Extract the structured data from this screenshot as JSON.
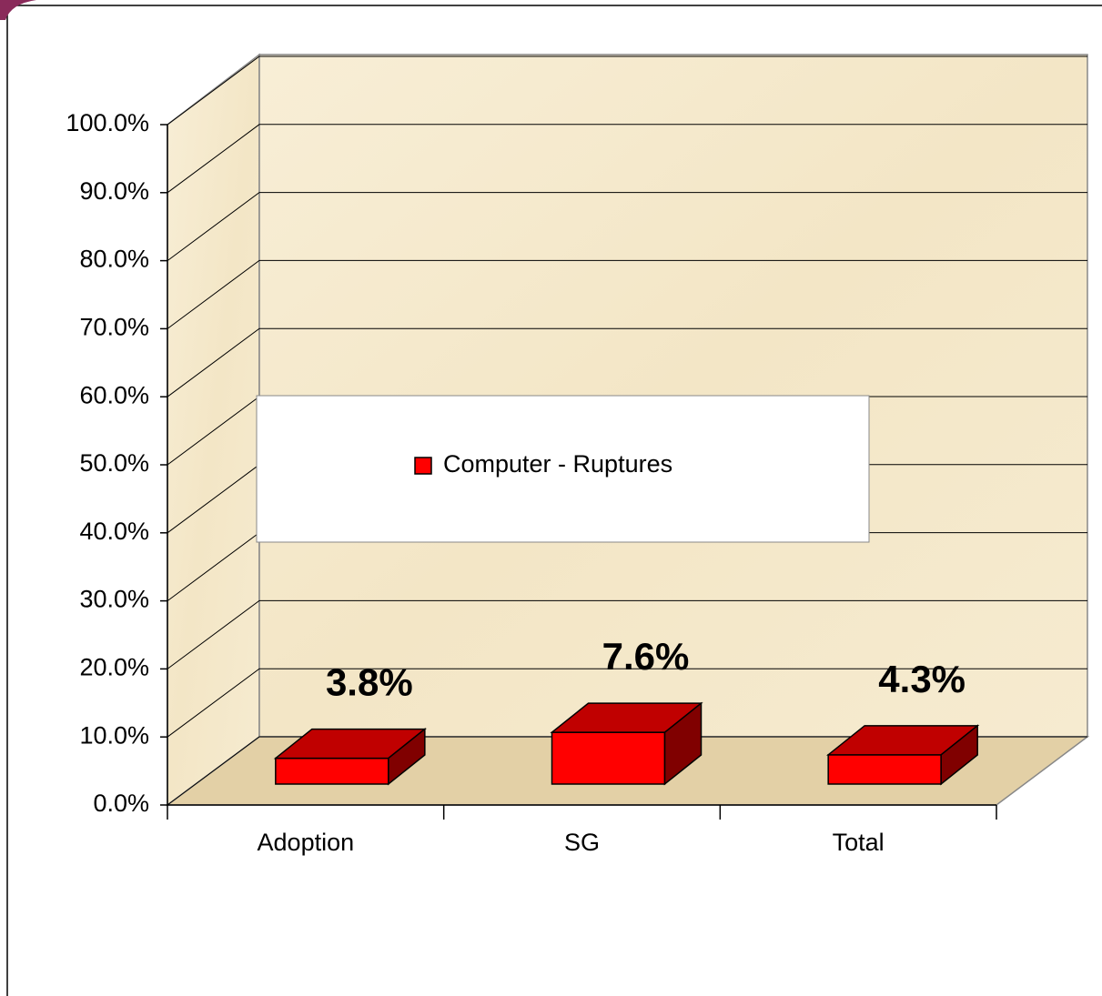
{
  "chart_data": {
    "type": "bar3d",
    "categories": [
      "Adoption",
      "SG",
      "Total"
    ],
    "series": [
      {
        "name": "Computer - Ruptures",
        "color": "#ff0000",
        "values": [
          3.8,
          7.6,
          4.3
        ],
        "value_labels": [
          "3.8%",
          "7.6%",
          "4.3%"
        ]
      }
    ],
    "ylim": [
      0,
      100
    ],
    "yticks": [
      {
        "value": 0,
        "label": "0.0%"
      },
      {
        "value": 10,
        "label": "10.0%"
      },
      {
        "value": 20,
        "label": "20.0%"
      },
      {
        "value": 30,
        "label": "30.0%"
      },
      {
        "value": 40,
        "label": "40.0%"
      },
      {
        "value": 50,
        "label": "50.0%"
      },
      {
        "value": 60,
        "label": "60.0%"
      },
      {
        "value": 70,
        "label": "70.0%"
      },
      {
        "value": 80,
        "label": "80.0%"
      },
      {
        "value": 90,
        "label": "90.0%"
      },
      {
        "value": 100,
        "label": "100.0%"
      }
    ],
    "grid": true
  }
}
